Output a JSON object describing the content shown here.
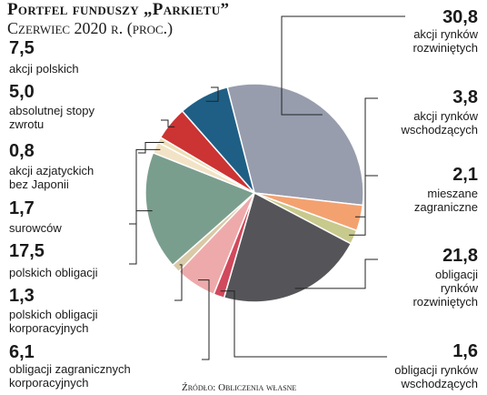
{
  "title": "Portfel funduszy „Parkietu”",
  "subtitle": "Czerwiec 2020 r. (proc.)",
  "source": "Źródło: Obliczenia własne",
  "chart_data": {
    "type": "pie",
    "title": "Portfel funduszy „Parkietu”",
    "subtitle": "Czerwiec 2020 r. (proc.)",
    "slices": [
      {
        "key": "dev_equity",
        "value_label": "30,8",
        "value": 30.8,
        "label_lines": [
          "akcji rynków",
          "rozwiniętych"
        ],
        "color": "#979dad"
      },
      {
        "key": "em_equity",
        "value_label": "3,8",
        "value": 3.8,
        "label_lines": [
          "akcji rynków",
          "wschodzących"
        ],
        "color": "#f4a170"
      },
      {
        "key": "mixed",
        "value_label": "2,1",
        "value": 2.1,
        "label_lines": [
          "mieszane",
          "zagraniczne"
        ],
        "color": "#c8c98c"
      },
      {
        "key": "dev_bonds",
        "value_label": "21,8",
        "value": 21.8,
        "label_lines": [
          "obligacji",
          "rynków",
          "rozwiniętych"
        ],
        "color": "#555559"
      },
      {
        "key": "em_bonds",
        "value_label": "1,6",
        "value": 1.6,
        "label_lines": [
          "obligacji rynków",
          "wschodzących"
        ],
        "color": "#d1495c"
      },
      {
        "key": "foreign_corp",
        "value_label": "6,1",
        "value": 6.1,
        "label_lines": [
          "obligacji zagranicznych",
          "korporacyjnych"
        ],
        "color": "#eeaaaa"
      },
      {
        "key": "pl_corp",
        "value_label": "1,3",
        "value": 1.3,
        "label_lines": [
          "polskich obligacji",
          "korporacyjnych"
        ],
        "color": "#d9c9a6"
      },
      {
        "key": "pl_bonds",
        "value_label": "17,5",
        "value": 17.5,
        "label_lines": [
          "polskich obligacji"
        ],
        "color": "#7a9e8e"
      },
      {
        "key": "commodities",
        "value_label": "1,7",
        "value": 1.7,
        "label_lines": [
          "surowców"
        ],
        "color": "#f3e3c6"
      },
      {
        "key": "asia",
        "value_label": "0,8",
        "value": 0.8,
        "label_lines": [
          "akcji azjatyckich",
          "bez Japonii"
        ],
        "color": "#eedfb5"
      },
      {
        "key": "abs_return",
        "value_label": "5,0",
        "value": 5.0,
        "label_lines": [
          "absolutnej stopy",
          "zwrotu"
        ],
        "color": "#cc3333"
      },
      {
        "key": "pl_equity",
        "value_label": "7,5",
        "value": 7.5,
        "label_lines": [
          "akcji polskich"
        ],
        "color": "#1f5f85"
      }
    ]
  }
}
